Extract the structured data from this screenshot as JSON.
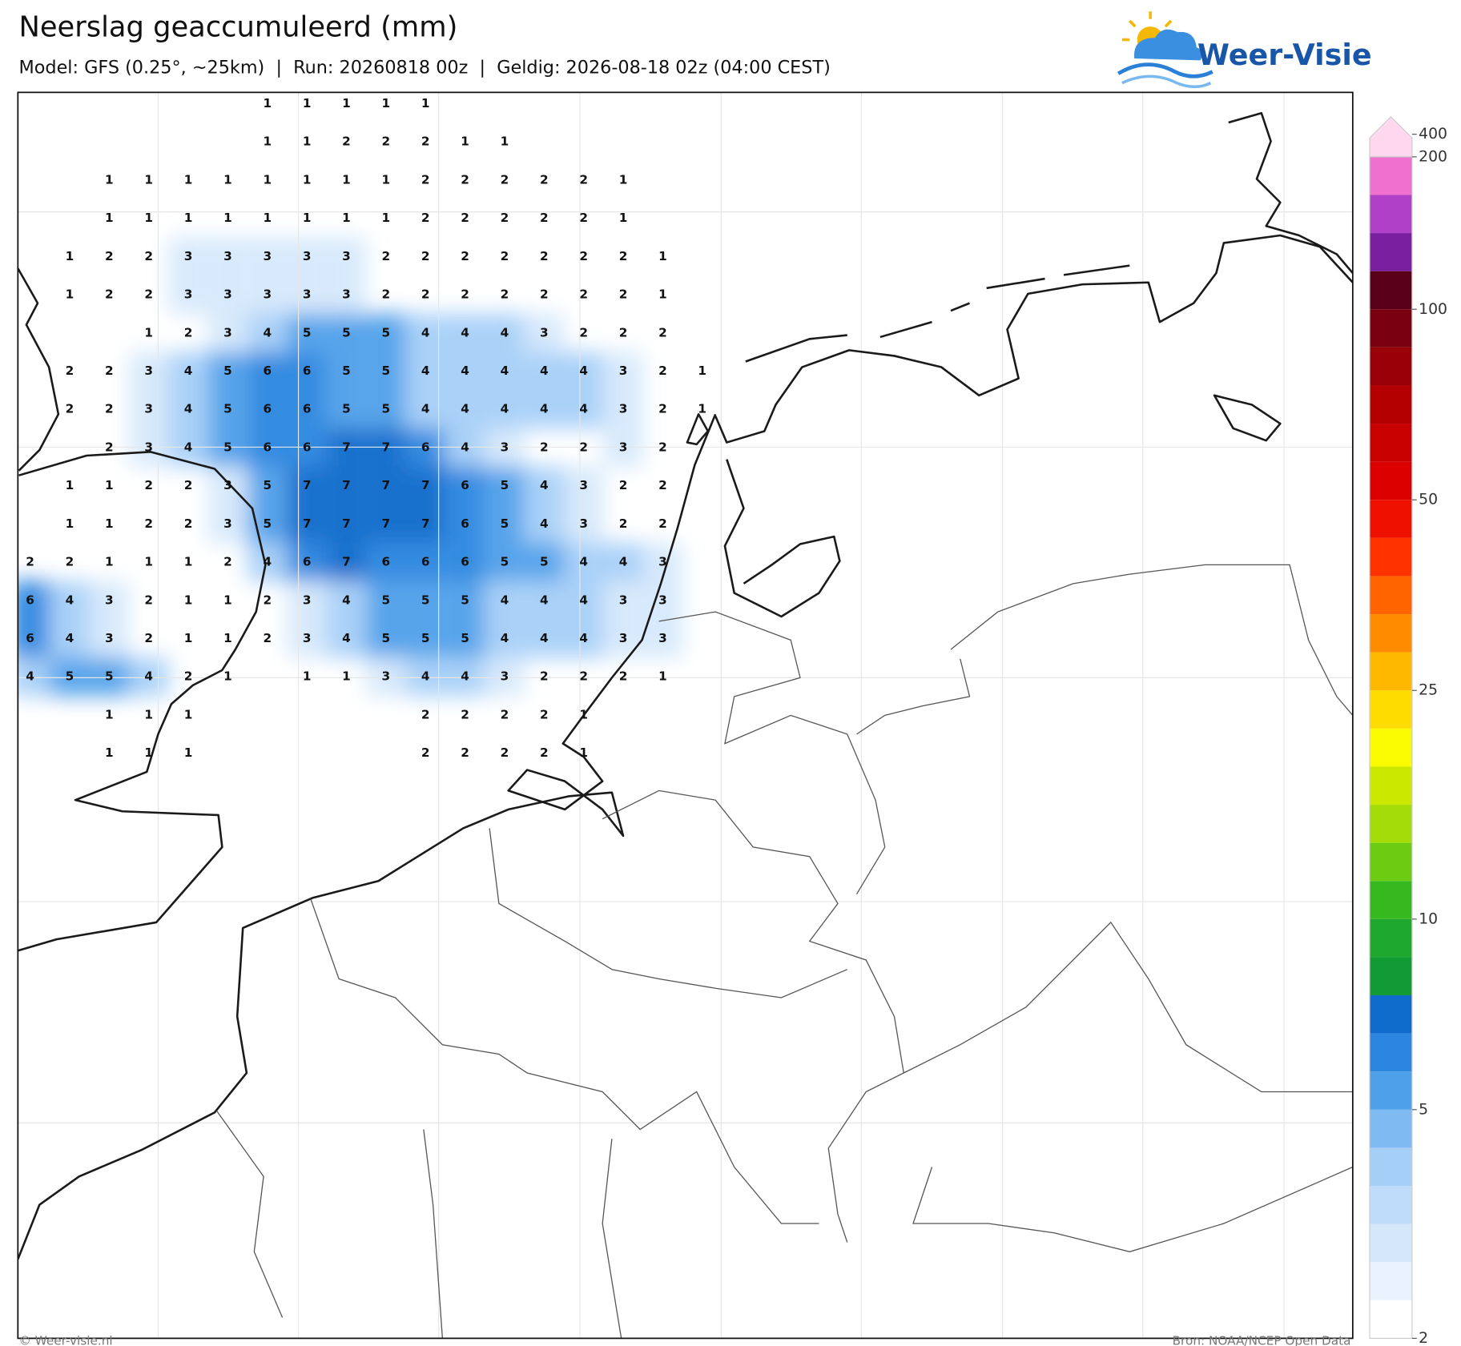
{
  "header": {
    "title": "Neerslag geaccumuleerd (mm)",
    "subtitle": "Model: GFS (0.25°, ~25km)  |  Run: 20260818 00z  |  Geldig: 2026-08-18 02z (04:00 CEST)",
    "logo": "Weer-Visie"
  },
  "precip_grid": {
    "rows": [
      [
        null,
        null,
        null,
        null,
        null,
        null,
        1,
        1,
        1,
        1,
        1,
        null,
        null,
        null,
        null,
        null,
        null,
        null
      ],
      [
        null,
        null,
        null,
        null,
        null,
        null,
        1,
        1,
        2,
        2,
        2,
        1,
        1,
        null,
        null,
        null,
        null,
        null
      ],
      [
        null,
        null,
        1,
        1,
        1,
        1,
        1,
        1,
        1,
        1,
        2,
        2,
        2,
        2,
        2,
        1,
        null,
        null
      ],
      [
        null,
        null,
        1,
        1,
        1,
        1,
        1,
        1,
        1,
        1,
        2,
        2,
        2,
        2,
        2,
        1,
        null,
        null
      ],
      [
        null,
        1,
        2,
        2,
        3,
        3,
        3,
        3,
        3,
        2,
        2,
        2,
        2,
        2,
        2,
        2,
        1,
        null
      ],
      [
        null,
        1,
        2,
        2,
        3,
        3,
        3,
        3,
        3,
        2,
        2,
        2,
        2,
        2,
        2,
        2,
        1,
        null
      ],
      [
        null,
        null,
        null,
        1,
        2,
        3,
        4,
        5,
        5,
        5,
        4,
        4,
        4,
        3,
        2,
        2,
        2,
        null
      ],
      [
        null,
        2,
        2,
        3,
        4,
        5,
        6,
        6,
        5,
        5,
        4,
        4,
        4,
        4,
        4,
        3,
        2,
        1
      ],
      [
        null,
        2,
        2,
        3,
        4,
        5,
        6,
        6,
        5,
        5,
        4,
        4,
        4,
        4,
        4,
        3,
        2,
        1
      ],
      [
        null,
        null,
        2,
        3,
        4,
        5,
        6,
        6,
        7,
        7,
        6,
        4,
        3,
        2,
        2,
        3,
        2,
        null
      ],
      [
        null,
        1,
        1,
        2,
        2,
        3,
        5,
        7,
        7,
        7,
        7,
        6,
        5,
        4,
        3,
        2,
        2,
        null
      ],
      [
        null,
        1,
        1,
        2,
        2,
        3,
        5,
        7,
        7,
        7,
        7,
        6,
        5,
        4,
        3,
        2,
        2,
        null
      ],
      [
        2,
        2,
        1,
        1,
        1,
        2,
        4,
        6,
        7,
        6,
        6,
        6,
        5,
        5,
        4,
        4,
        3,
        null
      ],
      [
        6,
        4,
        3,
        2,
        1,
        1,
        2,
        3,
        4,
        5,
        5,
        5,
        4,
        4,
        4,
        3,
        3,
        null
      ],
      [
        6,
        4,
        3,
        2,
        1,
        1,
        2,
        3,
        4,
        5,
        5,
        5,
        4,
        4,
        4,
        3,
        3,
        null
      ],
      [
        4,
        5,
        5,
        4,
        2,
        1,
        null,
        1,
        1,
        3,
        4,
        4,
        3,
        2,
        2,
        2,
        1,
        null
      ],
      [
        null,
        null,
        1,
        1,
        1,
        null,
        null,
        null,
        null,
        null,
        2,
        2,
        2,
        2,
        1,
        null,
        null,
        null
      ],
      [
        null,
        null,
        1,
        1,
        1,
        null,
        null,
        null,
        null,
        null,
        2,
        2,
        2,
        2,
        1,
        null,
        null,
        null
      ]
    ]
  },
  "colorbar": {
    "levels": [
      2,
      2.5,
      3,
      3.5,
      4,
      4.5,
      5,
      6,
      7,
      8,
      9,
      10,
      12,
      14,
      16,
      18,
      20,
      25,
      30,
      35,
      40,
      45,
      50,
      60,
      70,
      80,
      90,
      100,
      125,
      150,
      175,
      200,
      400
    ],
    "colors": [
      "#ffffff",
      "#eaf3fd",
      "#d5e8fb",
      "#bfdcfa",
      "#a6cff8",
      "#7fbaf2",
      "#4fa0ea",
      "#2a86e0",
      "#0f6bcc",
      "#129a34",
      "#1fa82e",
      "#36b81f",
      "#6ccc12",
      "#a3dc08",
      "#cbe800",
      "#fafa00",
      "#ffdc00",
      "#ffb800",
      "#ff8c00",
      "#ff6400",
      "#ff3200",
      "#f01000",
      "#dc0000",
      "#c80000",
      "#b40000",
      "#9a0008",
      "#7a0010",
      "#5a0018",
      "#7a1fa0",
      "#b040c8",
      "#f070d0",
      "#ffd8f0"
    ],
    "ticks": [
      2,
      5,
      10,
      25,
      50,
      100,
      200,
      400
    ]
  },
  "footer": {
    "left": "© Weer-visie.nl",
    "right": "Bron: NOAA/NCEP Open Data"
  }
}
